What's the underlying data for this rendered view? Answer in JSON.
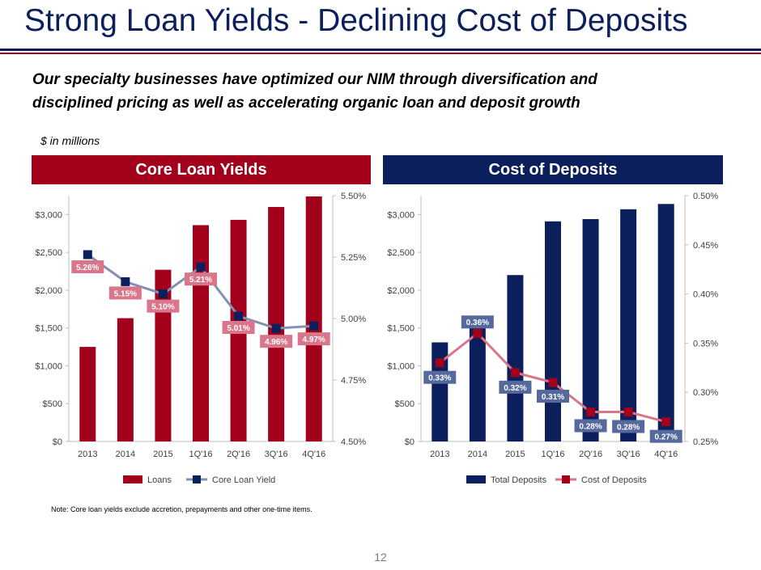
{
  "title": "Strong Loan Yields - Declining Cost of Deposits",
  "subtitle": "Our specialty businesses have optimized our NIM through diversification and disciplined pricing as well as accelerating organic loan and deposit growth",
  "units_note": "$ in millions",
  "footnote": "Note: Core loan yields  exclude accretion, prepayments and other one-time items.",
  "page_number": "12",
  "colors": {
    "navy": "#0b1f5c",
    "red": "#a3001c",
    "loan_line": "#8091b3",
    "deposit_line": "#d9768a",
    "loan_label_bg": "#d9768a",
    "deposit_label_bg": "#55699c"
  },
  "chart_data": [
    {
      "type": "bar",
      "title": "Core Loan Yields",
      "categories": [
        "2013",
        "2014",
        "2015",
        "1Q'16",
        "2Q'16",
        "3Q'16",
        "4Q'16"
      ],
      "ylim": [
        0,
        3250
      ],
      "y_ticks": [
        "$0",
        "$500",
        "$1,000",
        "$1,500",
        "$2,000",
        "$2,500",
        "$3,000"
      ],
      "y2lim": [
        4.5,
        5.5
      ],
      "y2_ticks": [
        "4.50%",
        "4.75%",
        "5.00%",
        "5.25%",
        "5.50%"
      ],
      "series": [
        {
          "name": "Loans",
          "kind": "bar",
          "values": [
            1250,
            1630,
            2270,
            2860,
            2930,
            3100,
            3240
          ]
        },
        {
          "name": "Core Loan Yield",
          "kind": "line",
          "axis": "secondary",
          "values": [
            5.26,
            5.15,
            5.1,
            5.21,
            5.01,
            4.96,
            4.97
          ],
          "labels": [
            "5.26%",
            "5.15%",
            "5.10%",
            "5.21%",
            "5.01%",
            "4.96%",
            "4.97%"
          ]
        }
      ],
      "legend": [
        "Loans",
        "Core Loan Yield"
      ],
      "legend_position": "bottom"
    },
    {
      "type": "bar",
      "title": "Cost of Deposits",
      "categories": [
        "2013",
        "2014",
        "2015",
        "1Q'16",
        "2Q'16",
        "3Q'16",
        "4Q'16"
      ],
      "ylim": [
        0,
        3250
      ],
      "y_ticks": [
        "$0",
        "$500",
        "$1,000",
        "$1,500",
        "$2,000",
        "$2,500",
        "$3,000"
      ],
      "y2lim": [
        0.25,
        0.5
      ],
      "y2_ticks": [
        "0.25%",
        "0.30%",
        "0.35%",
        "0.40%",
        "0.45%",
        "0.50%"
      ],
      "series": [
        {
          "name": "Total Deposits",
          "kind": "bar",
          "values": [
            1310,
            1630,
            2200,
            2910,
            2940,
            3070,
            3140
          ]
        },
        {
          "name": "Cost of Deposits",
          "kind": "line",
          "axis": "secondary",
          "values": [
            0.33,
            0.36,
            0.32,
            0.31,
            0.28,
            0.28,
            0.27
          ],
          "labels": [
            "0.33%",
            "0.36%",
            "0.32%",
            "0.31%",
            "0.28%",
            "0.28%",
            "0.27%"
          ]
        }
      ],
      "legend": [
        "Total Deposits",
        "Cost of Deposits"
      ],
      "legend_position": "bottom"
    }
  ]
}
